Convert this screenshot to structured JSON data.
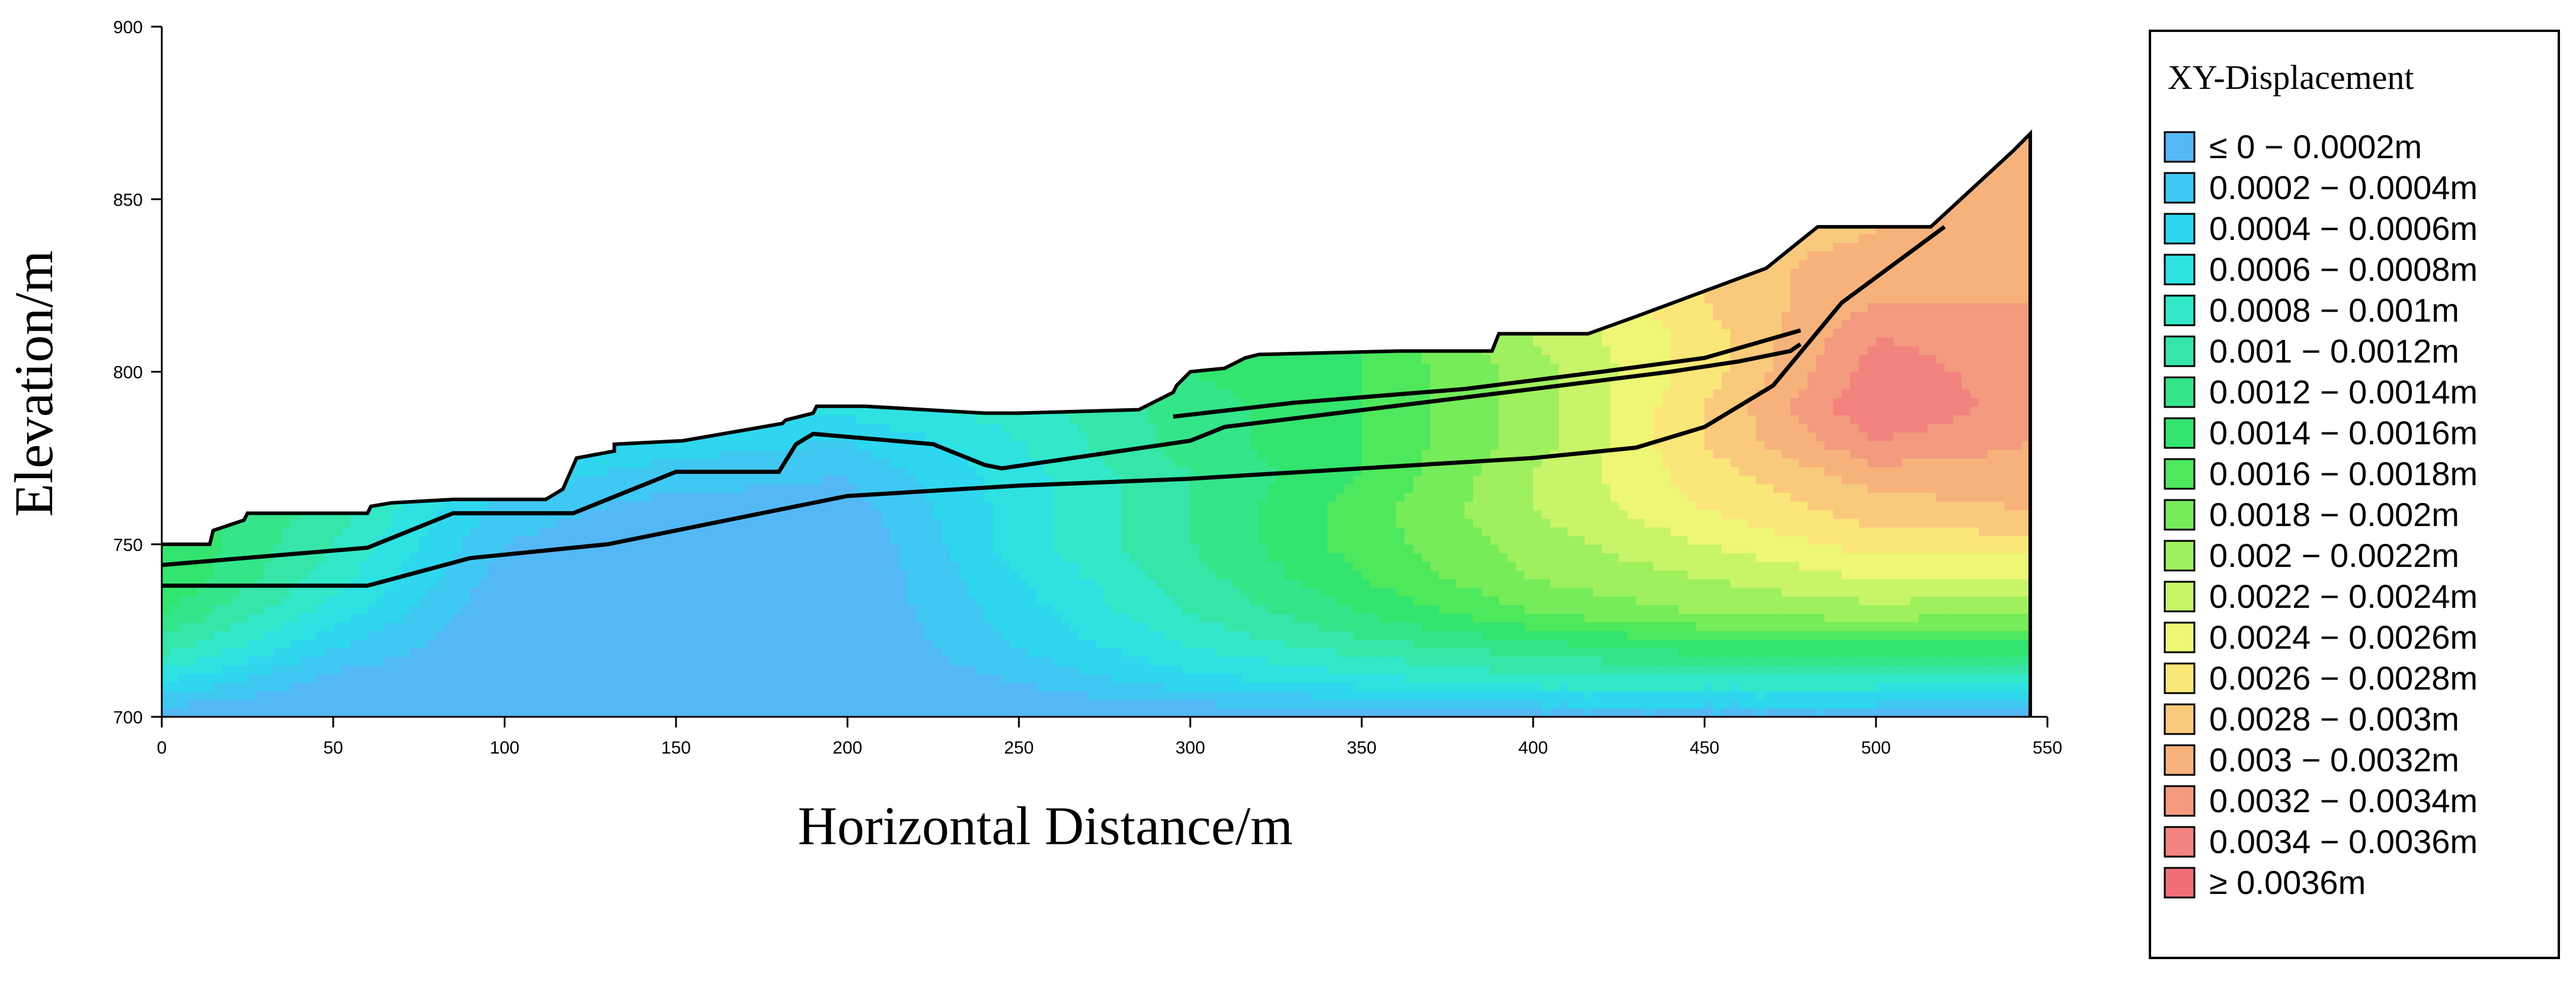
{
  "chart_data": {
    "type": "heatmap",
    "title": "",
    "xlabel": "Horizontal Distance/m",
    "ylabel": "Elevation/m",
    "xlim": [
      0,
      550
    ],
    "ylim": [
      700,
      900
    ],
    "xticks": [
      0,
      50,
      100,
      150,
      200,
      250,
      300,
      350,
      400,
      450,
      500,
      550
    ],
    "yticks": [
      700,
      750,
      800,
      850,
      900
    ],
    "grid": false,
    "legend_position": "right",
    "legend": {
      "title": "XY-Displacement",
      "entries": [
        {
          "label": "≤ 0 − 0.0002m",
          "color": "#55b8f6"
        },
        {
          "label": "0.0002 − 0.0004m",
          "color": "#3fc8f2"
        },
        {
          "label": "0.0004 − 0.0006m",
          "color": "#2ed6ee"
        },
        {
          "label": "0.0006 − 0.0008m",
          "color": "#2fe2e2"
        },
        {
          "label": "0.0008 − 0.001m",
          "color": "#33e8c8"
        },
        {
          "label": "0.001 − 0.0012m",
          "color": "#35e6a8"
        },
        {
          "label": "0.0012 − 0.0014m",
          "color": "#34e58a"
        },
        {
          "label": "0.0014 − 0.0016m",
          "color": "#33e46e"
        },
        {
          "label": "0.0016 − 0.0018m",
          "color": "#4ee85c"
        },
        {
          "label": "0.0018 − 0.002m",
          "color": "#76ec5a"
        },
        {
          "label": "0.002 − 0.0022m",
          "color": "#9ef05e"
        },
        {
          "label": "0.0022 − 0.0024m",
          "color": "#c8f46a"
        },
        {
          "label": "0.0024 − 0.0026m",
          "color": "#eef676"
        },
        {
          "label": "0.0026 − 0.0028m",
          "color": "#fbe67a"
        },
        {
          "label": "0.0028 − 0.003m",
          "color": "#f9ca7c"
        },
        {
          "label": "0.003 − 0.0032m",
          "color": "#f7b27c"
        },
        {
          "label": "0.0032 − 0.0034m",
          "color": "#f49a7e"
        },
        {
          "label": "0.0034 − 0.0036m",
          "color": "#f2837e"
        },
        {
          "label": "≥ 0.0036m",
          "color": "#f06e78"
        }
      ]
    },
    "surface_profile": {
      "x": [
        0,
        14,
        15,
        24,
        25,
        60,
        61,
        67,
        85,
        112,
        117,
        121,
        132,
        132,
        152,
        181,
        182,
        190,
        191,
        205,
        240,
        250,
        285,
        295,
        296,
        300,
        310,
        316,
        320,
        361,
        388,
        390,
        416,
        430,
        468,
        483,
        516,
        540,
        545
      ],
      "y": [
        750,
        750,
        754,
        757,
        759,
        759,
        761,
        762,
        763,
        763,
        766,
        775,
        777,
        779,
        780,
        785,
        786,
        788,
        790,
        790,
        788,
        788,
        789,
        794,
        796,
        800,
        801,
        804,
        805,
        806,
        806,
        811,
        811,
        816,
        830,
        842,
        842,
        864,
        869
      ]
    },
    "displacement_grid": {
      "x": [
        0,
        50,
        100,
        150,
        200,
        250,
        300,
        350,
        400,
        450,
        500,
        545
      ],
      "y": [
        700,
        710,
        720,
        730,
        740,
        750,
        760,
        770,
        780,
        790,
        800,
        810,
        820,
        830,
        840,
        850,
        860,
        870
      ],
      "z": [
        [
          0.0,
          0.0,
          0.0,
          0.0,
          0.0,
          0.0,
          0.0,
          0.0,
          0.0001,
          0.0001,
          0.0001,
          0.0
        ],
        [
          0.0006,
          0.0001,
          0.0,
          0.0,
          0.0,
          0.0002,
          0.0005,
          0.0007,
          0.0009,
          0.0009,
          0.0009,
          0.0009
        ],
        [
          0.0011,
          0.0004,
          0.0,
          0.0,
          0.0,
          0.0004,
          0.0008,
          0.0011,
          0.0013,
          0.0015,
          0.0015,
          0.0015
        ],
        [
          0.0014,
          0.0007,
          0.0,
          0.0,
          0.0,
          0.0005,
          0.001,
          0.0014,
          0.0018,
          0.002,
          0.0021,
          0.002
        ],
        [
          0.0016,
          0.0009,
          0.0001,
          0.0,
          0.0,
          0.0006,
          0.0011,
          0.0016,
          0.002,
          0.0022,
          0.0024,
          0.0024
        ],
        [
          0.0016,
          0.001,
          0.0002,
          0.0,
          0.0,
          0.0007,
          0.0012,
          0.0017,
          0.0021,
          0.0024,
          0.0027,
          0.0027
        ],
        [
          0.0016,
          0.0011,
          0.0003,
          0.0001,
          0.0001,
          0.0007,
          0.0012,
          0.0017,
          0.0022,
          0.0026,
          0.0029,
          0.003
        ],
        [
          0.0016,
          0.0011,
          0.0005,
          0.0003,
          0.0002,
          0.0007,
          0.0012,
          0.0016,
          0.0022,
          0.0027,
          0.0031,
          0.0031
        ],
        [
          0.0016,
          0.0011,
          0.0006,
          0.0005,
          0.0004,
          0.0008,
          0.0013,
          0.0016,
          0.0021,
          0.0028,
          0.0034,
          0.0032
        ],
        [
          0.0016,
          0.0011,
          0.0007,
          0.0007,
          0.0007,
          0.0009,
          0.0013,
          0.0016,
          0.0021,
          0.0028,
          0.0036,
          0.0033
        ],
        [
          0.0016,
          0.0011,
          0.0007,
          0.0007,
          0.0007,
          0.001,
          0.0014,
          0.0016,
          0.0021,
          0.0027,
          0.0035,
          0.0033
        ],
        [
          0.0016,
          0.0011,
          0.0007,
          0.0007,
          0.0007,
          0.001,
          0.0014,
          0.0016,
          0.0022,
          0.0027,
          0.0034,
          0.0033
        ],
        [
          0.0016,
          0.0011,
          0.0007,
          0.0007,
          0.0007,
          0.001,
          0.0014,
          0.0016,
          0.0022,
          0.0028,
          0.0032,
          0.0032
        ],
        [
          0.0016,
          0.0011,
          0.0007,
          0.0007,
          0.0007,
          0.001,
          0.0014,
          0.0016,
          0.0022,
          0.0029,
          0.0031,
          0.0031
        ],
        [
          0.0016,
          0.0011,
          0.0007,
          0.0007,
          0.0007,
          0.001,
          0.0014,
          0.0016,
          0.0022,
          0.0029,
          0.003,
          0.003
        ],
        [
          0.0016,
          0.0011,
          0.0007,
          0.0007,
          0.0007,
          0.001,
          0.0014,
          0.0016,
          0.0022,
          0.0029,
          0.003,
          0.003
        ],
        [
          0.0016,
          0.0011,
          0.0007,
          0.0007,
          0.0007,
          0.001,
          0.0014,
          0.0016,
          0.0022,
          0.0029,
          0.003,
          0.003
        ],
        [
          0.0016,
          0.0011,
          0.0007,
          0.0007,
          0.0007,
          0.001,
          0.0014,
          0.0016,
          0.0022,
          0.0029,
          0.003,
          0.003
        ]
      ]
    },
    "structure_lines": [
      {
        "x": [
          0,
          60,
          85,
          120,
          150,
          180,
          185,
          190,
          225,
          240,
          245,
          300,
          310,
          400,
          440,
          460,
          475,
          478
        ],
        "y": [
          744,
          749,
          759,
          759,
          771,
          771,
          779,
          782,
          779,
          773,
          772,
          780,
          784,
          795,
          800,
          803,
          806,
          808
        ]
      },
      {
        "x": [
          0,
          60,
          90,
          130,
          170,
          200,
          250,
          300,
          350,
          400,
          430,
          450,
          470,
          490,
          520
        ],
        "y": [
          738,
          738,
          746,
          750,
          758,
          764,
          767,
          769,
          772,
          775,
          778,
          784,
          796,
          820,
          842
        ]
      },
      {
        "x": [
          295,
          330,
          380,
          420,
          450,
          478
        ],
        "y": [
          787,
          791,
          795,
          800,
          804,
          812
        ]
      }
    ]
  }
}
